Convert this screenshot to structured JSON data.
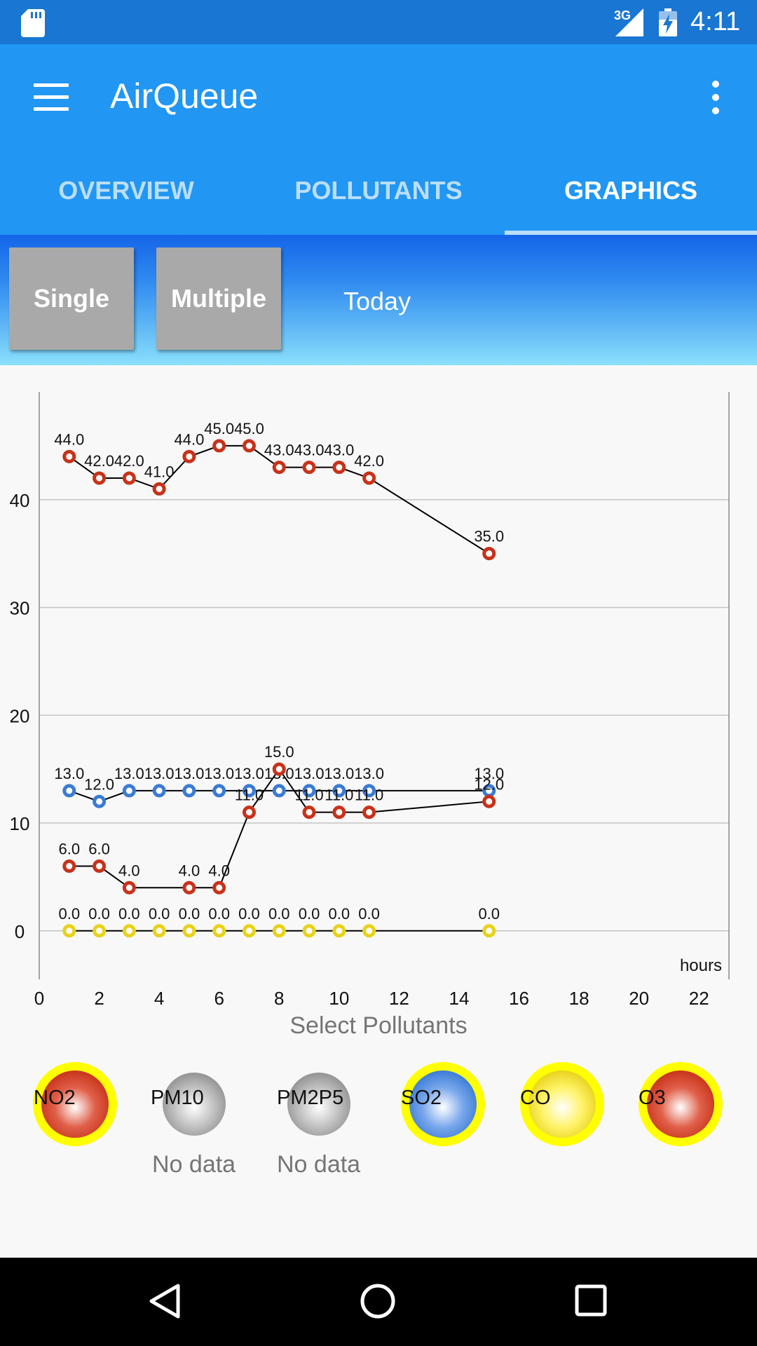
{
  "status_bar": {
    "network": "3G",
    "time": "4:11",
    "icons": [
      "sd-card-icon",
      "signal-icon",
      "battery-charging-icon"
    ]
  },
  "app_bar": {
    "title": "AirQueue",
    "menu_icon": "hamburger-menu-icon",
    "overflow_icon": "more-vert-icon"
  },
  "tabs": [
    {
      "label": "OVERVIEW",
      "active": false
    },
    {
      "label": "POLLUTANTS",
      "active": false
    },
    {
      "label": "GRAPHICS",
      "active": true
    }
  ],
  "toolbar": {
    "single_label": "Single",
    "multiple_label": "Multiple",
    "period_label": "Today"
  },
  "chart_data": {
    "type": "line",
    "xlabel": "hours",
    "ylabel": "",
    "xlim": [
      0,
      23
    ],
    "ylim": [
      -4.5,
      50
    ],
    "x_ticks": [
      0,
      2,
      4,
      6,
      8,
      10,
      12,
      14,
      16,
      18,
      20,
      22
    ],
    "y_ticks": [
      0,
      10,
      20,
      30,
      40
    ],
    "grid": "horizontal",
    "series": [
      {
        "name": "O3",
        "color": "#c8321a",
        "x": [
          1,
          2,
          3,
          4,
          5,
          6,
          7,
          8,
          9,
          10,
          11,
          15
        ],
        "values": [
          44,
          42,
          42,
          41,
          44,
          45,
          45,
          43,
          43,
          43,
          42,
          35
        ]
      },
      {
        "name": "SO2",
        "color": "#3a7bd5",
        "x": [
          1,
          2,
          3,
          4,
          5,
          6,
          7,
          8,
          9,
          10,
          11,
          15
        ],
        "values": [
          13,
          12,
          13,
          13,
          13,
          13,
          13,
          13,
          13,
          13,
          13,
          13
        ]
      },
      {
        "name": "NO2",
        "color": "#c8321a",
        "x": [
          1,
          2,
          3,
          5,
          6,
          7,
          8,
          9,
          10,
          11,
          15
        ],
        "values": [
          6,
          6,
          4,
          4,
          4,
          11,
          15,
          11,
          11,
          11,
          12
        ]
      },
      {
        "name": "CO",
        "color": "#e8d21a",
        "x": [
          1,
          2,
          3,
          4,
          5,
          6,
          7,
          8,
          9,
          10,
          11,
          15
        ],
        "values": [
          0,
          0,
          0,
          0,
          0,
          0,
          0,
          0,
          0,
          0,
          0,
          0
        ]
      }
    ]
  },
  "select_label": "Select Pollutants",
  "pollutants": [
    {
      "label": "NO2",
      "selected": true,
      "color": "#c8321a"
    },
    {
      "label": "PM10",
      "selected": false,
      "color": "#8a8a8a"
    },
    {
      "label": "PM2P5",
      "selected": false,
      "color": "#8a8a8a"
    },
    {
      "label": "SO2",
      "selected": true,
      "color": "#3a7bd5"
    },
    {
      "label": "CO",
      "selected": true,
      "color": "#e8d21a"
    },
    {
      "label": "O3",
      "selected": true,
      "color": "#c8321a"
    }
  ],
  "pm10_status": "No data",
  "pm2p5_status": "No data",
  "nav_bar": {
    "icons": [
      "back-icon",
      "home-icon",
      "recents-icon"
    ]
  }
}
